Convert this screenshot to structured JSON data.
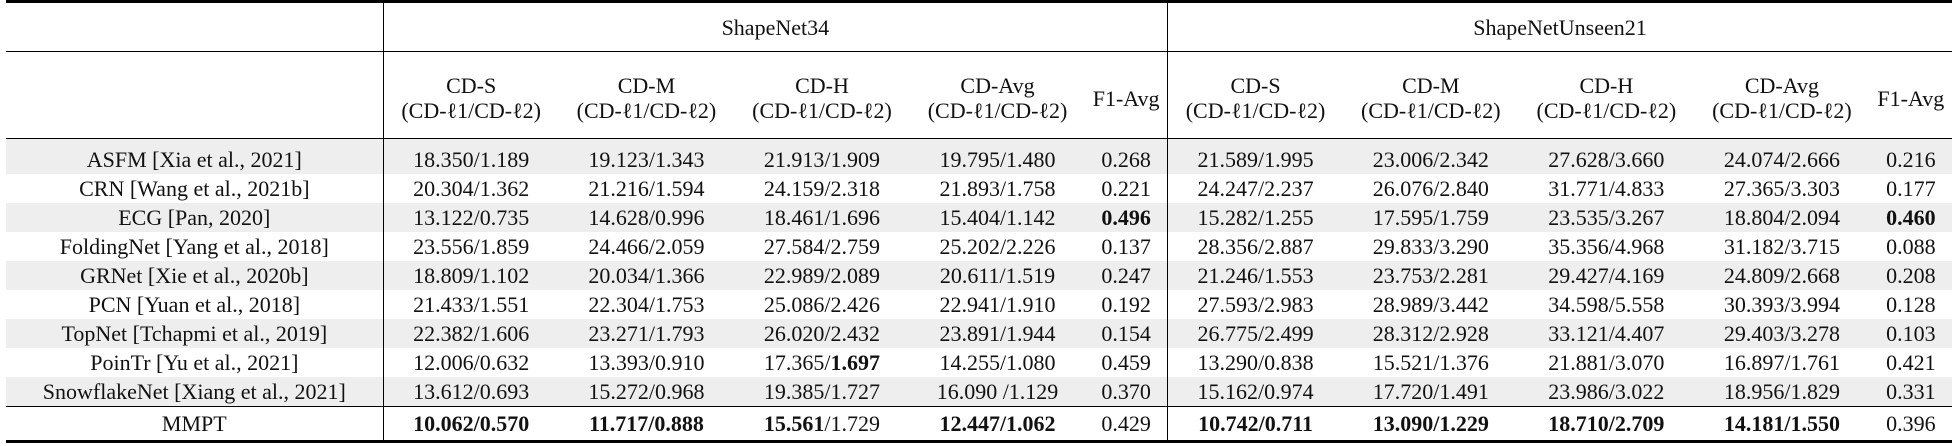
{
  "groups": {
    "g1": "ShapeNet34",
    "g2": "ShapeNetUnseen21"
  },
  "metrics": [
    {
      "name": "CD-S",
      "sub": "(CD-ℓ1/CD-ℓ2)"
    },
    {
      "name": "CD-M",
      "sub": "(CD-ℓ1/CD-ℓ2)"
    },
    {
      "name": "CD-H",
      "sub": "(CD-ℓ1/CD-ℓ2)"
    },
    {
      "name": "CD-Avg",
      "sub": "(CD-ℓ1/CD-ℓ2)"
    },
    {
      "name": "F1-Avg",
      "sub": ""
    }
  ],
  "rows": [
    {
      "method": "ASFM [Xia et al., 2021]",
      "cells": [
        "18.350/1.189",
        "19.123/1.343",
        "21.913/1.909",
        "19.795/1.480",
        "0.268",
        "21.589/1.995",
        "23.006/2.342",
        "27.628/3.660",
        "24.074/2.666",
        "0.216"
      ]
    },
    {
      "method": "CRN [Wang et al., 2021b]",
      "cells": [
        "20.304/1.362",
        "21.216/1.594",
        "24.159/2.318",
        "21.893/1.758",
        "0.221",
        "24.247/2.237",
        "26.076/2.840",
        "31.771/4.833",
        "27.365/3.303",
        "0.177"
      ]
    },
    {
      "method": "ECG [Pan, 2020]",
      "cells": [
        "13.122/0.735",
        "14.628/0.996",
        "18.461/1.696",
        "15.404/1.142",
        "0.496",
        "15.282/1.255",
        "17.595/1.759",
        "23.535/3.267",
        "18.804/2.094",
        "0.460"
      ]
    },
    {
      "method": "FoldingNet [Yang et al., 2018]",
      "cells": [
        "23.556/1.859",
        "24.466/2.059",
        "27.584/2.759",
        "25.202/2.226",
        "0.137",
        "28.356/2.887",
        "29.833/3.290",
        "35.356/4.968",
        "31.182/3.715",
        "0.088"
      ]
    },
    {
      "method": "GRNet [Xie et al., 2020b]",
      "cells": [
        "18.809/1.102",
        "20.034/1.366",
        "22.989/2.089",
        "20.611/1.519",
        "0.247",
        "21.246/1.553",
        "23.753/2.281",
        "29.427/4.169",
        "24.809/2.668",
        "0.208"
      ]
    },
    {
      "method": "PCN [Yuan et al., 2018]",
      "cells": [
        "21.433/1.551",
        "22.304/1.753",
        "25.086/2.426",
        "22.941/1.910",
        "0.192",
        "27.593/2.983",
        "28.989/3.442",
        "34.598/5.558",
        "30.393/3.994",
        "0.128"
      ]
    },
    {
      "method": "TopNet [Tchapmi et al., 2019]",
      "cells": [
        "22.382/1.606",
        "23.271/1.793",
        "26.020/2.432",
        "23.891/1.944",
        "0.154",
        "26.775/2.499",
        "28.312/2.928",
        "33.121/4.407",
        "29.403/3.278",
        "0.103"
      ]
    },
    {
      "method": "PoinTr [Yu et al., 2021]",
      "cells": [
        "12.006/0.632",
        "13.393/0.910",
        "17.365/1.697",
        "14.255/1.080",
        "0.459",
        "13.290/0.838",
        "15.521/1.376",
        "21.881/3.070",
        "16.897/1.761",
        "0.421"
      ]
    },
    {
      "method": "SnowflakeNet [Xiang et al., 2021]",
      "cells": [
        "13.612/0.693",
        "15.272/0.968",
        "19.385/1.727",
        "16.090 /1.129",
        "0.370",
        "15.162/0.974",
        "17.720/1.491",
        "23.986/3.022",
        "18.956/1.829",
        "0.331"
      ]
    },
    {
      "method": "MMPT",
      "cells": [
        "10.062/0.570",
        "11.717/0.888",
        "15.561/1.729",
        "12.447/1.062",
        "0.429",
        "10.742/0.711",
        "13.090/1.229",
        "18.710/2.709",
        "14.181/1.550",
        "0.396"
      ]
    }
  ]
}
